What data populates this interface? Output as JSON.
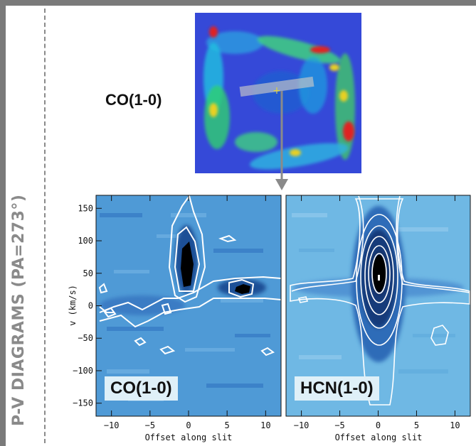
{
  "side_title": "P-V DIAGRAMS (PA=273°)",
  "map_label": "CO(1-0)",
  "colors": {
    "frame": "#7a7a7a",
    "contour": "#ffffff",
    "background_field": "#4a90d0"
  },
  "chart_data": [
    {
      "type": "heatmap",
      "panel_label": "CO(1-0)",
      "xlabel": "Offset along slit",
      "ylabel": "v (km/s)",
      "xlim": [
        -12,
        12
      ],
      "ylim": [
        -170,
        170
      ],
      "xticks": [
        -10,
        -5,
        0,
        5,
        10
      ],
      "yticks": [
        -150,
        -100,
        -50,
        0,
        50,
        100,
        150
      ],
      "grid": false,
      "features": [
        {
          "x": 0,
          "y": 60,
          "note": "peak"
        },
        {
          "x": 8,
          "y": 25,
          "note": "peak"
        }
      ]
    },
    {
      "type": "heatmap",
      "panel_label": "HCN(1-0)",
      "xlabel": "Offset along slit",
      "ylabel": "",
      "xlim": [
        -12,
        12
      ],
      "ylim": [
        -170,
        170
      ],
      "xticks": [
        -10,
        -5,
        0,
        5,
        10
      ],
      "yticks": [
        -150,
        -100,
        -50,
        0,
        50,
        100,
        150
      ],
      "grid": false,
      "features": [
        {
          "x": 0,
          "y": 40,
          "note": "peak"
        }
      ]
    }
  ]
}
